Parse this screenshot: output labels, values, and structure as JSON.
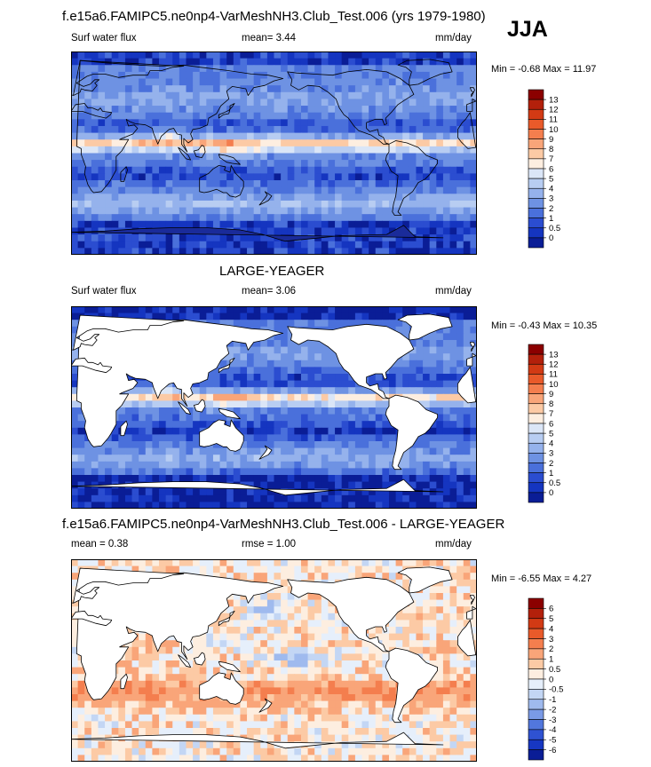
{
  "header": {
    "title": "f.e15a6.FAMIPC5.ne0np4-VarMeshNH3.Club_Test.006 (yrs 1979-1980)",
    "season": "JJA"
  },
  "panels": [
    {
      "id": "model",
      "title": "",
      "left_label": "Surf water flux",
      "center_label": "mean=   3.44",
      "units": "mm/day",
      "minmax": "Min =  -0.68 Max =  11.97",
      "land_masked": false
    },
    {
      "id": "obs",
      "title": "LARGE-YEAGER",
      "left_label": "Surf water flux",
      "center_label": "mean=   3.06",
      "units": "mm/day",
      "minmax": "Min =  -0.43 Max =  10.35",
      "land_masked": true
    },
    {
      "id": "diff",
      "title": "f.e15a6.FAMIPC5.ne0np4-VarMeshNH3.Club_Test.006 - LARGE-YEAGER",
      "left_label": "mean =   0.38",
      "center_label": "rmse =   1.00",
      "units": "mm/day",
      "minmax": "Min =  -6.55 Max =   4.27",
      "land_masked": true
    }
  ],
  "chart_data": [
    {
      "type": "heatmap",
      "name": "Surf water flux",
      "units": "mm/day",
      "mean": 3.44,
      "min": -0.68,
      "max": 11.97,
      "colorbar_levels": [
        "13",
        "12",
        "11",
        "10",
        "9",
        "8",
        "7",
        "6",
        "5",
        "4",
        "3",
        "2",
        "1",
        "0.5",
        "0"
      ],
      "colorbar_colors": [
        "#8b0000",
        "#b3200b",
        "#d23a14",
        "#e95a2a",
        "#f47e4e",
        "#f9a579",
        "#fccaa5",
        "#fdeee0",
        "#dbe6f7",
        "#b8cdf2",
        "#95b2ec",
        "#6e92e3",
        "#4a70db",
        "#2b4dd0",
        "#1535c0",
        "#0a1d96"
      ]
    },
    {
      "type": "heatmap",
      "name": "Surf water flux",
      "units": "mm/day",
      "mean": 3.06,
      "min": -0.43,
      "max": 10.35,
      "colorbar_levels": [
        "13",
        "12",
        "11",
        "10",
        "9",
        "8",
        "7",
        "6",
        "5",
        "4",
        "3",
        "2",
        "1",
        "0.5",
        "0"
      ],
      "colorbar_colors": [
        "#8b0000",
        "#b3200b",
        "#d23a14",
        "#e95a2a",
        "#f47e4e",
        "#f9a579",
        "#fccaa5",
        "#fdeee0",
        "#dbe6f7",
        "#b8cdf2",
        "#95b2ec",
        "#6e92e3",
        "#4a70db",
        "#2b4dd0",
        "#1535c0",
        "#0a1d96"
      ]
    },
    {
      "type": "heatmap",
      "name": "f.e15a6.FAMIPC5.ne0np4-VarMeshNH3.Club_Test.006 - LARGE-YEAGER",
      "units": "mm/day",
      "mean": 0.38,
      "rmse": 1.0,
      "min": -6.55,
      "max": 4.27,
      "colorbar_levels": [
        "6",
        "5",
        "4",
        "3",
        "2",
        "1",
        "0.5",
        "0",
        "-0.5",
        "-1",
        "-2",
        "-3",
        "-4",
        "-5",
        "-6"
      ],
      "colorbar_colors": [
        "#8b0000",
        "#b3200b",
        "#d23a14",
        "#e95a2a",
        "#f47e4e",
        "#f9a579",
        "#fccaa5",
        "#fdeee0",
        "#e6effb",
        "#c3d6f4",
        "#9fbaee",
        "#7a9ae6",
        "#5277dd",
        "#2f52d2",
        "#1737c2",
        "#0a1d96"
      ]
    }
  ]
}
